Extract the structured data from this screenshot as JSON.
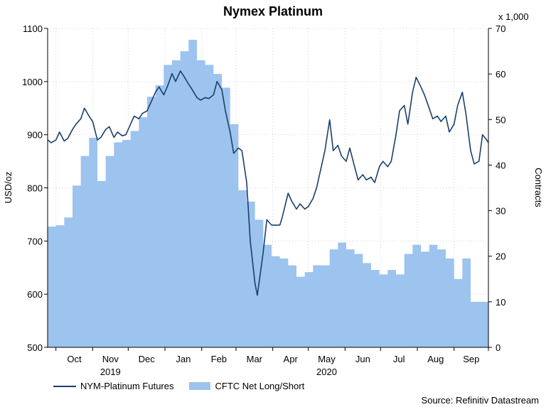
{
  "chart_data": {
    "type": "line",
    "title": "Nymex Platinum",
    "ylabel": "USD/oz",
    "ylabel_right": "Contracts",
    "right_axis_multiplier": "x 1,000",
    "ylim": [
      500,
      1100
    ],
    "ylim_right": [
      0,
      70
    ],
    "yticks": [
      "500",
      "600",
      "700",
      "800",
      "900",
      "1000",
      "1100"
    ],
    "yticks_right": [
      "0",
      "10",
      "20",
      "30",
      "40",
      "50",
      "60",
      "70"
    ],
    "month_labels": [
      "Oct",
      "Nov",
      "Dec",
      "Jan",
      "Feb",
      "Mar",
      "Apr",
      "May",
      "Jun",
      "Jul",
      "Aug",
      "Sep"
    ],
    "year_labels": [
      "2019",
      "2020"
    ],
    "grid": true,
    "legend_position": "bottom-left",
    "x_range": [
      "2019-09-24",
      "2020-09-30"
    ],
    "series": [
      {
        "name": "NYM-Platinum Futures",
        "axis": "left",
        "color": "#1a3f6b",
        "points": [
          [
            "2019-09-24",
            890
          ],
          [
            "2019-09-27",
            885
          ],
          [
            "2019-10-01",
            890
          ],
          [
            "2019-10-04",
            905
          ],
          [
            "2019-10-08",
            888
          ],
          [
            "2019-10-11",
            893
          ],
          [
            "2019-10-15",
            910
          ],
          [
            "2019-10-18",
            920
          ],
          [
            "2019-10-22",
            930
          ],
          [
            "2019-10-25",
            950
          ],
          [
            "2019-10-29",
            935
          ],
          [
            "2019-11-01",
            925
          ],
          [
            "2019-11-05",
            890
          ],
          [
            "2019-11-08",
            895
          ],
          [
            "2019-11-12",
            910
          ],
          [
            "2019-11-15",
            915
          ],
          [
            "2019-11-19",
            895
          ],
          [
            "2019-11-22",
            905
          ],
          [
            "2019-11-26",
            898
          ],
          [
            "2019-11-29",
            900
          ],
          [
            "2019-12-03",
            920
          ],
          [
            "2019-12-06",
            935
          ],
          [
            "2019-12-10",
            930
          ],
          [
            "2019-12-13",
            940
          ],
          [
            "2019-12-17",
            945
          ],
          [
            "2019-12-20",
            960
          ],
          [
            "2019-12-24",
            980
          ],
          [
            "2019-12-27",
            990
          ],
          [
            "2019-12-31",
            975
          ],
          [
            "2020-01-03",
            990
          ],
          [
            "2020-01-07",
            1015
          ],
          [
            "2020-01-10",
            1000
          ],
          [
            "2020-01-14",
            1020
          ],
          [
            "2020-01-17",
            1010
          ],
          [
            "2020-01-21",
            995
          ],
          [
            "2020-01-24",
            985
          ],
          [
            "2020-01-28",
            970
          ],
          [
            "2020-01-31",
            965
          ],
          [
            "2020-02-04",
            970
          ],
          [
            "2020-02-07",
            968
          ],
          [
            "2020-02-11",
            975
          ],
          [
            "2020-02-14",
            1000
          ],
          [
            "2020-02-18",
            985
          ],
          [
            "2020-02-21",
            945
          ],
          [
            "2020-02-25",
            905
          ],
          [
            "2020-02-28",
            865
          ],
          [
            "2020-03-03",
            875
          ],
          [
            "2020-03-06",
            870
          ],
          [
            "2020-03-10",
            810
          ],
          [
            "2020-03-13",
            700
          ],
          [
            "2020-03-17",
            620
          ],
          [
            "2020-03-19",
            598
          ],
          [
            "2020-03-24",
            680
          ],
          [
            "2020-03-27",
            740
          ],
          [
            "2020-03-31",
            730
          ],
          [
            "2020-04-03",
            730
          ],
          [
            "2020-04-07",
            730
          ],
          [
            "2020-04-09",
            745
          ],
          [
            "2020-04-14",
            790
          ],
          [
            "2020-04-17",
            775
          ],
          [
            "2020-04-21",
            760
          ],
          [
            "2020-04-24",
            770
          ],
          [
            "2020-04-28",
            760
          ],
          [
            "2020-05-01",
            765
          ],
          [
            "2020-05-05",
            780
          ],
          [
            "2020-05-08",
            800
          ],
          [
            "2020-05-12",
            840
          ],
          [
            "2020-05-15",
            870
          ],
          [
            "2020-05-19",
            928
          ],
          [
            "2020-05-22",
            870
          ],
          [
            "2020-05-26",
            880
          ],
          [
            "2020-05-29",
            860
          ],
          [
            "2020-06-02",
            850
          ],
          [
            "2020-06-05",
            875
          ],
          [
            "2020-06-09",
            840
          ],
          [
            "2020-06-12",
            815
          ],
          [
            "2020-06-16",
            825
          ],
          [
            "2020-06-19",
            815
          ],
          [
            "2020-06-23",
            820
          ],
          [
            "2020-06-26",
            810
          ],
          [
            "2020-06-30",
            840
          ],
          [
            "2020-07-03",
            850
          ],
          [
            "2020-07-07",
            840
          ],
          [
            "2020-07-10",
            850
          ],
          [
            "2020-07-14",
            900
          ],
          [
            "2020-07-17",
            945
          ],
          [
            "2020-07-21",
            955
          ],
          [
            "2020-07-24",
            920
          ],
          [
            "2020-07-28",
            980
          ],
          [
            "2020-07-31",
            1008
          ],
          [
            "2020-08-04",
            990
          ],
          [
            "2020-08-07",
            975
          ],
          [
            "2020-08-11",
            950
          ],
          [
            "2020-08-14",
            930
          ],
          [
            "2020-08-18",
            935
          ],
          [
            "2020-08-21",
            925
          ],
          [
            "2020-08-25",
            935
          ],
          [
            "2020-08-28",
            905
          ],
          [
            "2020-09-01",
            920
          ],
          [
            "2020-09-04",
            955
          ],
          [
            "2020-09-08",
            980
          ],
          [
            "2020-09-11",
            940
          ],
          [
            "2020-09-15",
            870
          ],
          [
            "2020-09-18",
            845
          ],
          [
            "2020-09-22",
            850
          ],
          [
            "2020-09-25",
            900
          ],
          [
            "2020-09-28",
            892
          ],
          [
            "2020-09-30",
            885
          ]
        ]
      },
      {
        "name": "CFTC Net Long/Short",
        "axis": "right",
        "color": "#9dc3ef",
        "points": [
          [
            "2019-09-24",
            26.5
          ],
          [
            "2019-10-01",
            26.8
          ],
          [
            "2019-10-08",
            28.5
          ],
          [
            "2019-10-15",
            35.5
          ],
          [
            "2019-10-22",
            42.0
          ],
          [
            "2019-10-29",
            46.0
          ],
          [
            "2019-11-05",
            36.5
          ],
          [
            "2019-11-12",
            42.0
          ],
          [
            "2019-11-19",
            45.0
          ],
          [
            "2019-11-26",
            45.5
          ],
          [
            "2019-12-03",
            47.5
          ],
          [
            "2019-12-10",
            50.5
          ],
          [
            "2019-12-17",
            55.0
          ],
          [
            "2019-12-24",
            57.5
          ],
          [
            "2019-12-31",
            62.0
          ],
          [
            "2020-01-07",
            63.0
          ],
          [
            "2020-01-14",
            65.0
          ],
          [
            "2020-01-21",
            67.5
          ],
          [
            "2020-01-28",
            63.0
          ],
          [
            "2020-02-04",
            62.0
          ],
          [
            "2020-02-11",
            60.0
          ],
          [
            "2020-02-18",
            57.0
          ],
          [
            "2020-02-25",
            49.0
          ],
          [
            "2020-03-03",
            34.5
          ],
          [
            "2020-03-10",
            32.0
          ],
          [
            "2020-03-17",
            28.0
          ],
          [
            "2020-03-24",
            22.5
          ],
          [
            "2020-03-31",
            20.0
          ],
          [
            "2020-04-07",
            19.5
          ],
          [
            "2020-04-14",
            18.0
          ],
          [
            "2020-04-21",
            15.5
          ],
          [
            "2020-04-28",
            16.5
          ],
          [
            "2020-05-05",
            18.0
          ],
          [
            "2020-05-12",
            18.0
          ],
          [
            "2020-05-19",
            21.5
          ],
          [
            "2020-05-26",
            23.0
          ],
          [
            "2020-06-02",
            21.5
          ],
          [
            "2020-06-09",
            20.5
          ],
          [
            "2020-06-16",
            18.5
          ],
          [
            "2020-06-23",
            17.0
          ],
          [
            "2020-06-30",
            16.0
          ],
          [
            "2020-07-07",
            17.0
          ],
          [
            "2020-07-14",
            16.0
          ],
          [
            "2020-07-21",
            20.5
          ],
          [
            "2020-07-28",
            22.5
          ],
          [
            "2020-08-04",
            21.0
          ],
          [
            "2020-08-11",
            22.5
          ],
          [
            "2020-08-18",
            21.5
          ],
          [
            "2020-08-25",
            19.5
          ],
          [
            "2020-09-01",
            15.0
          ],
          [
            "2020-09-08",
            19.5
          ],
          [
            "2020-09-15",
            10.0
          ],
          [
            "2020-09-22",
            10.0
          ],
          [
            "2020-09-29",
            10.0
          ]
        ]
      }
    ]
  },
  "legend": {
    "line_label": "NYM-Platinum Futures",
    "area_label": "CFTC Net Long/Short"
  },
  "source": "Source: Refinitiv Datastream"
}
